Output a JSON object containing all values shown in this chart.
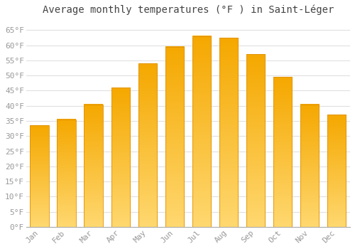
{
  "months": [
    "Jan",
    "Feb",
    "Mar",
    "Apr",
    "May",
    "Jun",
    "Jul",
    "Aug",
    "Sep",
    "Oct",
    "Nov",
    "Dec"
  ],
  "values": [
    33.5,
    35.5,
    40.5,
    46.0,
    54.0,
    59.5,
    63.0,
    62.5,
    57.0,
    49.5,
    40.5,
    37.0
  ],
  "bar_color_top": "#F5A800",
  "bar_color_bottom": "#FFD870",
  "bar_edge_color": "#E09000",
  "title": "Average monthly temperatures (°F ) in Saint-Léger",
  "ylim": [
    0,
    68
  ],
  "yticks": [
    0,
    5,
    10,
    15,
    20,
    25,
    30,
    35,
    40,
    45,
    50,
    55,
    60,
    65
  ],
  "ytick_labels": [
    "0°F",
    "5°F",
    "10°F",
    "15°F",
    "20°F",
    "25°F",
    "30°F",
    "35°F",
    "40°F",
    "45°F",
    "50°F",
    "55°F",
    "60°F",
    "65°F"
  ],
  "background_color": "#ffffff",
  "plot_bg_color": "#ffffff",
  "grid_color": "#e0e0e0",
  "title_fontsize": 10,
  "tick_fontsize": 8,
  "tick_color": "#999999",
  "font_family": "monospace"
}
